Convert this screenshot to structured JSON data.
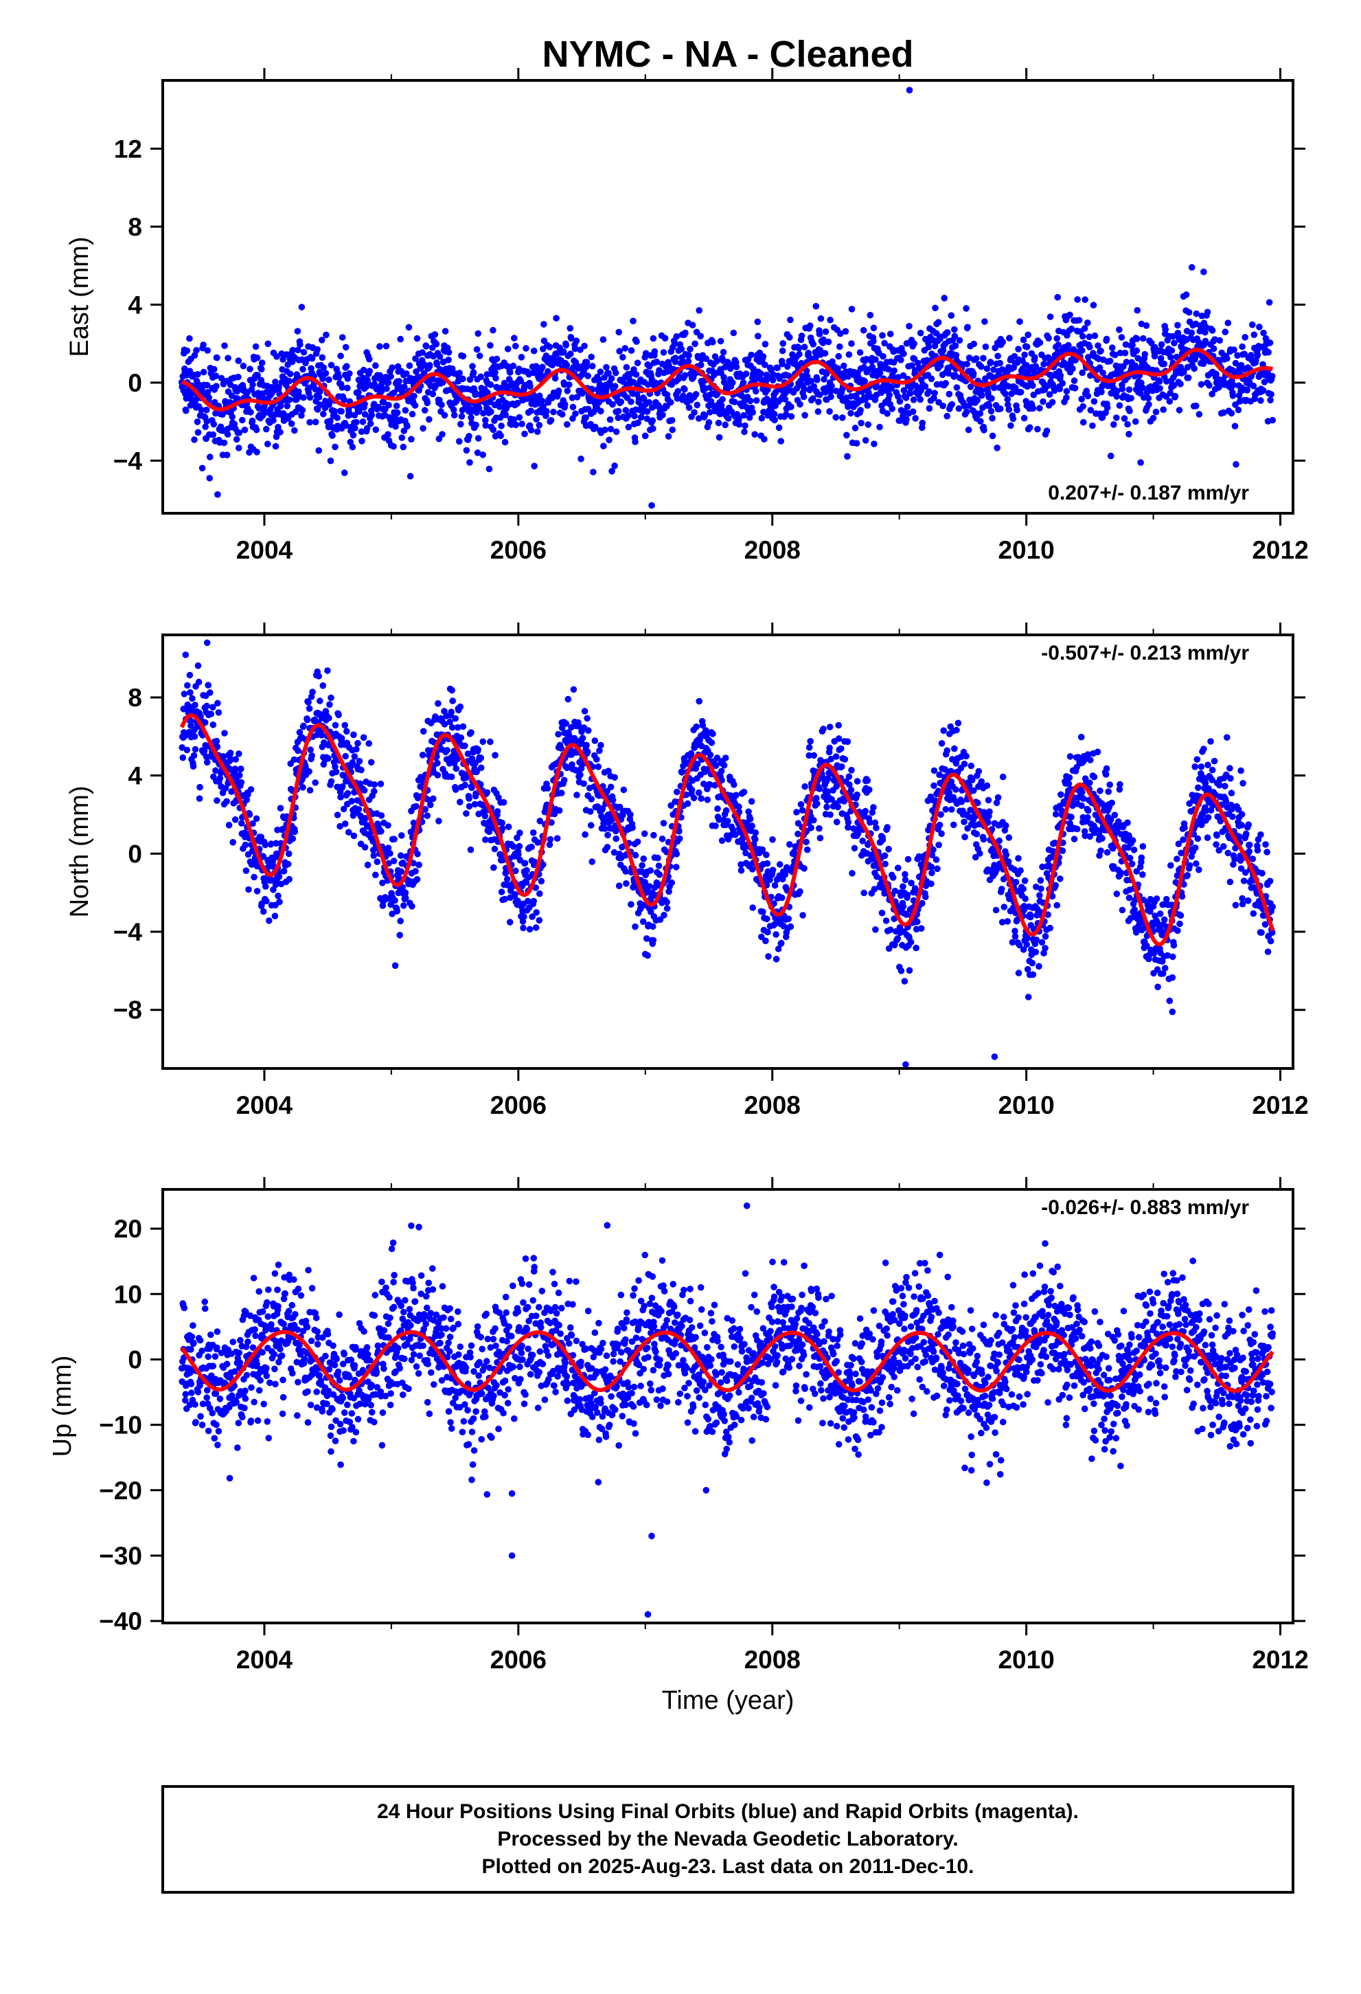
{
  "title": "NYMC  - NA - Cleaned",
  "x_axis_label": "Time (year)",
  "x_ticks": [
    "2004",
    "2006",
    "2008",
    "2010",
    "2012"
  ],
  "colors": {
    "points": "#0000ff",
    "fit": "#ff0000",
    "frame": "#000000"
  },
  "chart_data": [
    {
      "type": "scatter",
      "component": "East",
      "ylabel": "East (mm)",
      "xlim": [
        2003.2,
        2012.1
      ],
      "ylim": [
        -6.7,
        15.5
      ],
      "y_ticks": [
        12,
        8,
        4,
        0,
        -4
      ],
      "y_tick_labels": [
        "12",
        "8",
        "4",
        "0",
        "−4"
      ],
      "rate_label": "0.207+/- 0.187 mm/yr",
      "rate_position": "bottom-right",
      "trend": {
        "intercept_2007": -0.1,
        "rate_mm_per_yr": 0.207,
        "annual_amplitude": 0.55,
        "annual_phase": 1.2,
        "semiannual_amplitude": 0.35,
        "semiannual_phase": 0.3
      },
      "scatter_sd": 1.25,
      "data_span": [
        "2003-05",
        "2011-12-10"
      ],
      "outliers": [
        {
          "x": 2009.08,
          "y": 15.0
        },
        {
          "x": 2007.05,
          "y": -6.3
        },
        {
          "x": 2005.15,
          "y": -4.8
        },
        {
          "x": 2010.9,
          "y": -4.1
        }
      ]
    },
    {
      "type": "scatter",
      "component": "North",
      "ylabel": "North (mm)",
      "xlim": [
        2003.2,
        2012.1
      ],
      "ylim": [
        -11.0,
        11.2
      ],
      "y_ticks": [
        8,
        4,
        0,
        -4,
        -8
      ],
      "y_tick_labels": [
        "8",
        "4",
        "0",
        "−4",
        "−8"
      ],
      "rate_label": "-0.507+/- 0.213 mm/yr",
      "rate_position": "top-right",
      "trend": {
        "intercept_2007": 1.6,
        "rate_mm_per_yr": -0.507,
        "annual_amplitude": 3.6,
        "annual_phase": 0.0,
        "semiannual_amplitude": 0.9,
        "semiannual_phase": 0.4
      },
      "scatter_sd": 1.3,
      "data_span": [
        "2003-05",
        "2011-12-10"
      ],
      "outliers": [
        {
          "x": 2003.55,
          "y": 10.8
        },
        {
          "x": 2009.05,
          "y": -10.8
        },
        {
          "x": 2009.75,
          "y": -10.4
        },
        {
          "x": 2011.15,
          "y": -8.1
        }
      ]
    },
    {
      "type": "scatter",
      "component": "Up",
      "ylabel": "Up (mm)",
      "xlim": [
        2003.2,
        2012.1
      ],
      "ylim": [
        -40.3,
        26.0
      ],
      "y_ticks": [
        20,
        10,
        0,
        -10,
        -20,
        -30,
        -40
      ],
      "y_tick_labels": [
        "20",
        "10",
        "0",
        "−10",
        "−20",
        "−30",
        "−40"
      ],
      "rate_label": "-0.026+/- 0.883 mm/yr",
      "rate_position": "top-right",
      "trend": {
        "intercept_2007": 0.0,
        "rate_mm_per_yr": -0.026,
        "annual_amplitude": 4.4,
        "annual_phase": 2.2,
        "semiannual_amplitude": 0.3,
        "semiannual_phase": 0.0
      },
      "scatter_sd": 5.0,
      "data_span": [
        "2003-05",
        "2011-12-10"
      ],
      "outliers": [
        {
          "x": 2007.02,
          "y": -39.0
        },
        {
          "x": 2005.95,
          "y": -30.0
        },
        {
          "x": 2007.05,
          "y": -27.0
        },
        {
          "x": 2007.8,
          "y": 23.5
        },
        {
          "x": 2006.7,
          "y": 20.5
        },
        {
          "x": 2005.95,
          "y": -20.5
        }
      ]
    }
  ],
  "footer": {
    "line1": "24 Hour Positions Using Final Orbits (blue) and Rapid Orbits (magenta).",
    "line2": "Processed by the Nevada Geodetic Laboratory.",
    "line3": "Plotted on 2025-Aug-23. Last data on 2011-Dec-10."
  }
}
